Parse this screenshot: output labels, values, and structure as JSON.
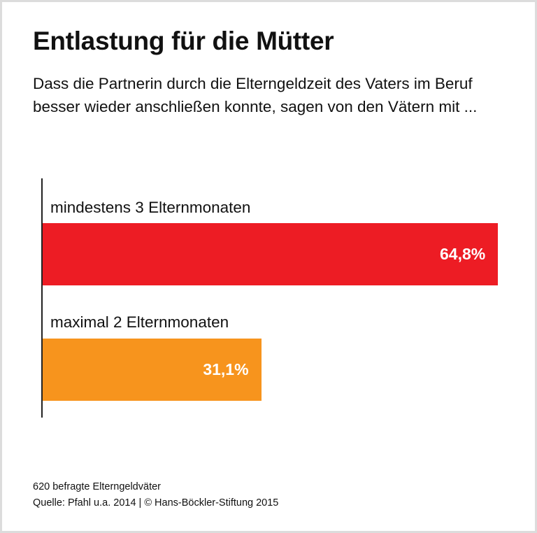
{
  "title": "Entlastung für die Mütter",
  "subtitle": "Dass die Partnerin durch die Elterngeldzeit des Vaters im Beruf besser wieder anschließen konnte, sagen von den Vätern mit ...",
  "chart_data": {
    "type": "bar",
    "orientation": "horizontal",
    "title": "Entlastung für die Mütter",
    "categories": [
      "mindestens 3 Elternmonaten",
      "maximal 2 Elternmonaten"
    ],
    "values": [
      64.8,
      31.1
    ],
    "value_labels": [
      "64,8%",
      "31,1%"
    ],
    "unit": "%",
    "colors": [
      "#ED1C24",
      "#F7941D"
    ],
    "grid": false,
    "legend": "none"
  },
  "footer": {
    "note": "620 befragte Elterngeldväter",
    "source": "Quelle: Pfahl u.a. 2014 | © Hans-Böckler-Stiftung 2015"
  }
}
